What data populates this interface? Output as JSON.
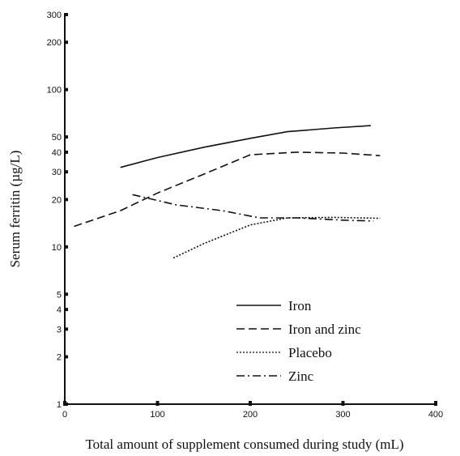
{
  "chart_data": {
    "type": "line",
    "xlabel": "Total amount of supplement consumed during study (mL)",
    "ylabel": "Serum ferritin (µg/L)",
    "xlim": [
      0,
      400
    ],
    "ylim": [
      1,
      300
    ],
    "y_scale": "log",
    "grid": false,
    "legend_position": "bottom-right",
    "x_ticks": [
      0,
      100,
      200,
      300,
      400
    ],
    "x_tick_labels": [
      "0",
      "100",
      "200",
      "300",
      "400"
    ],
    "y_ticks": [
      1,
      2,
      3,
      4,
      5,
      10,
      20,
      30,
      40,
      50,
      100,
      200,
      300
    ],
    "y_tick_labels": [
      "1",
      "2",
      "3",
      "4",
      "5",
      "10",
      "20",
      "30",
      "40",
      "50",
      "100",
      "200",
      "300"
    ],
    "series": [
      {
        "name": "Iron",
        "style": "solid",
        "x": [
          60,
          100,
          150,
          200,
          240,
          290,
          330
        ],
        "y": [
          32,
          37,
          43,
          49,
          54,
          57,
          59
        ]
      },
      {
        "name": "Iron and zinc",
        "style": "dashed",
        "x": [
          10,
          60,
          100,
          150,
          200,
          250,
          300,
          340
        ],
        "y": [
          13.5,
          17,
          22,
          29,
          38.5,
          40,
          39.5,
          38
        ]
      },
      {
        "name": "Placebo",
        "style": "dotted",
        "x": [
          117,
          150,
          200,
          240,
          290,
          340
        ],
        "y": [
          8.5,
          10.5,
          13.8,
          15.3,
          15.4,
          15.2
        ]
      },
      {
        "name": "Zinc",
        "style": "dashdot",
        "x": [
          73,
          120,
          170,
          210,
          250,
          300,
          333
        ],
        "y": [
          21.5,
          18.5,
          17,
          15.3,
          15.3,
          14.8,
          14.6
        ]
      }
    ]
  }
}
